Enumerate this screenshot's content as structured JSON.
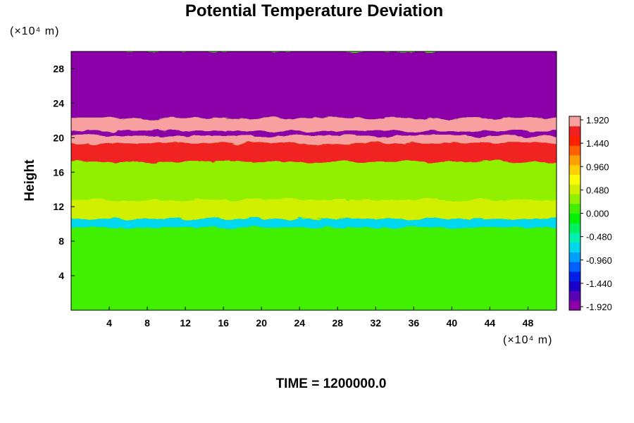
{
  "chart_data": {
    "type": "heatmap",
    "title": "Potential Temperature Deviation",
    "ylabel": "Height",
    "xlabel": "",
    "x_unit": "(×10⁴ m)",
    "y_unit": "(×10⁴ m)",
    "xlim": [
      0,
      51
    ],
    "ylim": [
      0,
      30
    ],
    "x_ticks": [
      4,
      8,
      12,
      16,
      20,
      24,
      28,
      32,
      36,
      40,
      44,
      48
    ],
    "y_ticks": [
      4,
      8,
      12,
      16,
      20,
      24,
      28
    ],
    "grid": false,
    "colorbar": {
      "position": "right",
      "min": -1.92,
      "max": 1.92,
      "tick_labels": [
        "1.920",
        "1.440",
        "0.960",
        "0.480",
        "0.000",
        "-0.480",
        "-0.960",
        "-1.440",
        "-1.920"
      ],
      "colors": [
        "#8b00a8",
        "#5a00b5",
        "#1a00c8",
        "#0020e8",
        "#0060ff",
        "#00a0ff",
        "#00d8f0",
        "#00f0b0",
        "#00f060",
        "#00f000",
        "#40f000",
        "#90f000",
        "#d0f000",
        "#ffff00",
        "#ffd000",
        "#ffa000",
        "#ff6000",
        "#ff2000",
        "#f02020",
        "#f8a0a0"
      ]
    },
    "layers": [
      {
        "y_range": [
          0,
          9.6
        ],
        "value": 0.1
      },
      {
        "y_range": [
          9.6,
          10.6
        ],
        "value": -0.7
      },
      {
        "y_range": [
          10.6,
          12.8
        ],
        "value": 0.5
      },
      {
        "y_range": [
          12.8,
          17.2
        ],
        "value": 0.2
      },
      {
        "y_range": [
          17.2,
          19.4
        ],
        "value": 1.6
      },
      {
        "y_range": [
          19.4,
          20.2
        ],
        "value": 1.92
      },
      {
        "y_range": [
          20.2,
          20.8
        ],
        "value": -1.92
      },
      {
        "y_range": [
          20.8,
          22.3
        ],
        "value": 1.92
      },
      {
        "y_range": [
          22.3,
          30
        ],
        "value": -1.92
      }
    ]
  },
  "caption": "TIME = 1200000.0"
}
